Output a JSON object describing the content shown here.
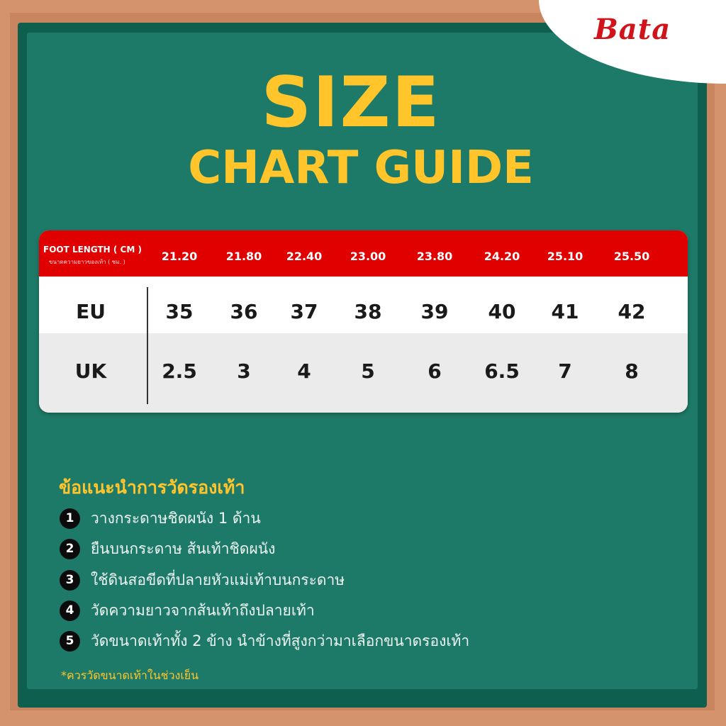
{
  "brand": "Bata",
  "title": {
    "line1": "SIZE",
    "line2": "CHART GUIDE"
  },
  "table": {
    "header_label": "FOOT LENGTH ( CM )",
    "header_sublabel": "ขนาดความยาวของเท้า ( ซม. )",
    "foot_length": [
      "21.20",
      "21.80",
      "22.40",
      "23.00",
      "23.80",
      "24.20",
      "25.10",
      "25.50"
    ],
    "rows": [
      {
        "label": "EU",
        "values": [
          "35",
          "36",
          "37",
          "38",
          "39",
          "40",
          "41",
          "42"
        ]
      },
      {
        "label": "UK",
        "values": [
          "2.5",
          "3",
          "4",
          "5",
          "6",
          "6.5",
          "7",
          "8"
        ]
      }
    ]
  },
  "tips": {
    "heading": "ข้อแนะนำการวัดรองเท้า",
    "items": [
      {
        "num": "1",
        "text": "วางกระดาษชิดผนัง 1 ด้าน"
      },
      {
        "num": "2",
        "text": "ยืนบนกระดาษ ส้นเท้าชิดผนัง"
      },
      {
        "num": "3",
        "text": "ใช้ดินสอขีดที่ปลายหัวแม่เท้าบนกระดาษ"
      },
      {
        "num": "4",
        "text": "วัดความยาวจากส้นเท้าถึงปลายเท้า"
      },
      {
        "num": "5",
        "text": "วัดขนาดเท้าทั้ง 2 ข้าง นำข้างที่สูงกว่ามาเลือกขนาดรองเท้า"
      }
    ],
    "footnote": "*ควรวัดขนาดเท้าในช่วงเย็น"
  },
  "colors": {
    "board": "#1e7a68",
    "accent": "#ffc52a",
    "header_red": "#e00000",
    "brand_red": "#d0141c"
  }
}
